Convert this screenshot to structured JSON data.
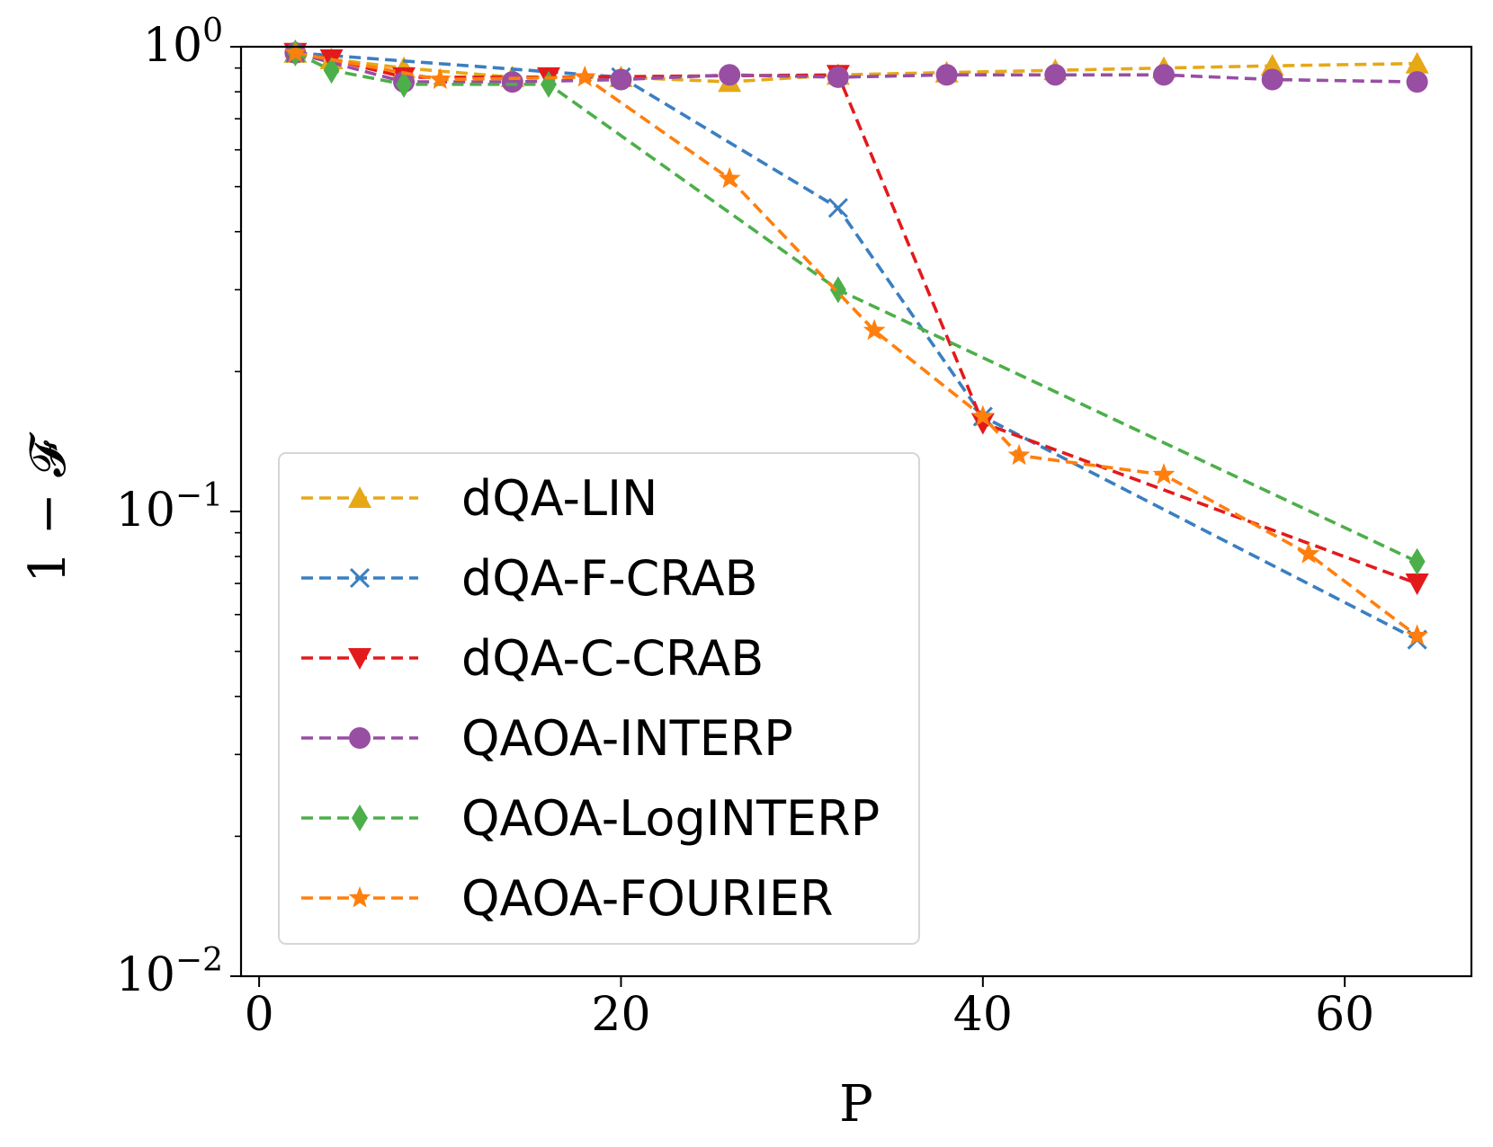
{
  "chart_data": {
    "type": "line",
    "title": "",
    "xlabel": "P",
    "ylabel": "1 − 𝓕",
    "yscale": "log",
    "xlim": [
      -1,
      67
    ],
    "ylim": [
      0.01,
      1.0
    ],
    "x_ticks": [
      0,
      20,
      40,
      60
    ],
    "x_tick_labels": [
      "0",
      "20",
      "40",
      "60"
    ],
    "y_ticks": [
      1.0,
      0.1,
      0.01
    ],
    "y_tick_labels": [
      {
        "base": "10",
        "exp": "0"
      },
      {
        "base": "10",
        "exp": "−1"
      },
      {
        "base": "10",
        "exp": "−2"
      }
    ],
    "grid": false,
    "legend_position": "lower-left",
    "series": [
      {
        "name": "dQA-LIN",
        "color": "#e6a817",
        "marker": "triangle-up",
        "x": [
          2,
          4,
          8,
          14,
          20,
          26,
          32,
          38,
          44,
          50,
          56,
          64
        ],
        "y": [
          0.97,
          0.94,
          0.9,
          0.86,
          0.86,
          0.84,
          0.87,
          0.88,
          0.89,
          0.9,
          0.91,
          0.92
        ]
      },
      {
        "name": "dQA-F-CRAB",
        "color": "#3a7fc1",
        "marker": "x",
        "x": [
          2,
          20,
          32,
          40,
          64
        ],
        "y": [
          0.97,
          0.86,
          0.45,
          0.16,
          0.053
        ]
      },
      {
        "name": "dQA-C-CRAB",
        "color": "#e31a1c",
        "marker": "triangle-down",
        "x": [
          2,
          4,
          8,
          16,
          32,
          40,
          64
        ],
        "y": [
          0.97,
          0.94,
          0.86,
          0.86,
          0.87,
          0.155,
          0.07
        ]
      },
      {
        "name": "QAOA-INTERP",
        "color": "#984ea3",
        "marker": "circle",
        "x": [
          2,
          8,
          14,
          20,
          26,
          32,
          38,
          44,
          50,
          56,
          64
        ],
        "y": [
          0.97,
          0.84,
          0.84,
          0.85,
          0.87,
          0.86,
          0.87,
          0.87,
          0.87,
          0.85,
          0.84
        ]
      },
      {
        "name": "QAOA-LogINTERP",
        "color": "#4daf4a",
        "marker": "thin-diamond",
        "x": [
          2,
          4,
          8,
          16,
          32,
          64
        ],
        "y": [
          0.97,
          0.89,
          0.83,
          0.83,
          0.3,
          0.078
        ]
      },
      {
        "name": "QAOA-FOURIER",
        "color": "#ff7f0e",
        "marker": "star",
        "x": [
          2,
          10,
          18,
          26,
          34,
          40,
          42,
          50,
          58,
          64
        ],
        "y": [
          0.97,
          0.85,
          0.86,
          0.52,
          0.245,
          0.16,
          0.132,
          0.12,
          0.081,
          0.054
        ]
      }
    ]
  }
}
